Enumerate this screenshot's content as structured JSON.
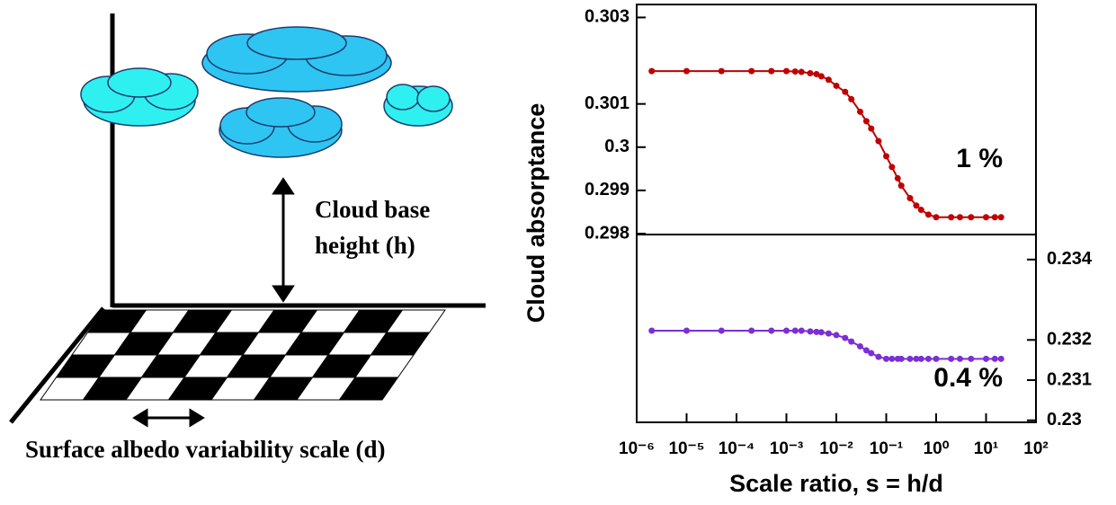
{
  "diagram": {
    "height_label": [
      "Cloud base",
      "height (h)"
    ],
    "scale_label": "Surface albedo variability scale (d)"
  },
  "chart_data": [
    {
      "type": "line",
      "xscale": "log",
      "xlim": [
        1e-06,
        100
      ],
      "ylim": [
        0.298,
        0.3033
      ],
      "yaxis": "left",
      "yticks": [
        0.298,
        0.299,
        0.3,
        0.301,
        0.303
      ],
      "ylabel": "Cloud absorptance",
      "annotation": "1 %",
      "x": [
        2e-06,
        1e-05,
        5e-05,
        0.0002,
        0.0005,
        0.001,
        0.0015,
        0.002,
        0.003,
        0.004,
        0.005,
        0.007,
        0.01,
        0.015,
        0.02,
        0.03,
        0.04,
        0.05,
        0.07,
        0.1,
        0.13,
        0.17,
        0.2,
        0.3,
        0.4,
        0.5,
        0.7,
        1,
        2,
        3,
        5,
        10,
        15,
        20
      ],
      "series": [
        {
          "color": "#c00000",
          "values": [
            0.30176,
            0.30176,
            0.30176,
            0.30176,
            0.30176,
            0.30176,
            0.30175,
            0.30174,
            0.30171,
            0.30169,
            0.30164,
            0.30156,
            0.30142,
            0.30128,
            0.30111,
            0.30082,
            0.3006,
            0.30043,
            0.30014,
            0.29979,
            0.29954,
            0.29928,
            0.29911,
            0.29882,
            0.29865,
            0.29855,
            0.29844,
            0.29838,
            0.29838,
            0.29838,
            0.29838,
            0.29838,
            0.29838,
            0.29838
          ]
        }
      ]
    },
    {
      "type": "line",
      "xscale": "log",
      "xlim": [
        1e-06,
        100
      ],
      "ylim": [
        0.22995,
        0.2346
      ],
      "yaxis": "right",
      "yticks": [
        0.23,
        0.231,
        0.232,
        0.234
      ],
      "xticks": [
        {
          "value": 1e-06,
          "label": "10⁻⁶"
        },
        {
          "value": 1e-05,
          "label": "10⁻⁵"
        },
        {
          "value": 0.0001,
          "label": "10⁻⁴"
        },
        {
          "value": 0.001,
          "label": "10⁻³"
        },
        {
          "value": 0.01,
          "label": "10⁻²"
        },
        {
          "value": 0.1,
          "label": "10⁻¹"
        },
        {
          "value": 1,
          "label": "10⁰"
        },
        {
          "value": 10,
          "label": "10¹"
        },
        {
          "value": 100,
          "label": "10²"
        }
      ],
      "xlabel": "Scale ratio, s = h/d",
      "annotation": "0.4 %",
      "x": [
        2e-06,
        1e-05,
        5e-05,
        0.0002,
        0.0005,
        0.001,
        0.0015,
        0.002,
        0.003,
        0.004,
        0.005,
        0.007,
        0.01,
        0.015,
        0.02,
        0.03,
        0.04,
        0.05,
        0.07,
        0.1,
        0.13,
        0.17,
        0.2,
        0.3,
        0.4,
        0.5,
        0.7,
        1,
        2,
        3,
        5,
        10,
        15,
        20
      ],
      "series": [
        {
          "color": "#7b2fd6",
          "values": [
            0.23223,
            0.23223,
            0.23223,
            0.23223,
            0.23223,
            0.23223,
            0.23223,
            0.23223,
            0.23221,
            0.2322,
            0.23219,
            0.23216,
            0.23212,
            0.23205,
            0.23196,
            0.23184,
            0.23174,
            0.23167,
            0.23158,
            0.23153,
            0.23153,
            0.23153,
            0.23153,
            0.23153,
            0.23153,
            0.23153,
            0.23153,
            0.23153,
            0.23153,
            0.23153,
            0.23153,
            0.23153,
            0.23153,
            0.23153
          ]
        }
      ]
    }
  ]
}
